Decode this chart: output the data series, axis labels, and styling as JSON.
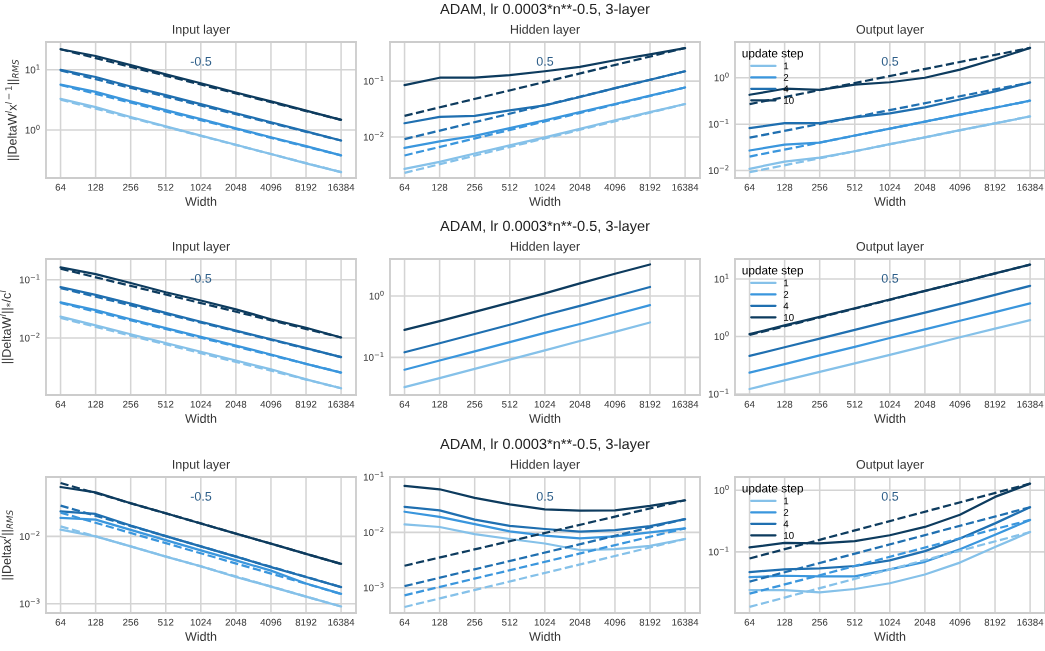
{
  "chart_data": [
    {
      "type": "line",
      "title": "Input layer",
      "xlabel": "Width",
      "ylabel": "||DeltaW$^{l}$x$^{l−1}$||$_{RMS}$",
      "log": "xy",
      "grid": true,
      "x": [
        64,
        128,
        256,
        512,
        1024,
        2048,
        4096,
        8192,
        16384
      ],
      "xlim": [
        48,
        22000
      ],
      "xticks": [
        64,
        128,
        256,
        512,
        1024,
        2048,
        4096,
        8192,
        16384
      ],
      "ylim": [
        0.16,
        29
      ],
      "yticks": [
        {
          "value": 1,
          "label": "10$^{0}$"
        },
        {
          "value": 10,
          "label": "10$^{1}$"
        }
      ],
      "annotations": [
        "-0.5"
      ],
      "series": [
        {
          "color": "#85c1e9",
          "values": [
            3.3,
            2.4,
            1.65,
            1.15,
            0.81,
            0.57,
            0.4,
            0.28,
            0.2
          ]
        },
        {
          "color": "#3a96dd",
          "values": [
            5.7,
            4.3,
            3.0,
            2.15,
            1.52,
            1.07,
            0.76,
            0.54,
            0.38
          ]
        },
        {
          "color": "#1f6fb0",
          "values": [
            10,
            7.6,
            5.3,
            3.8,
            2.7,
            1.9,
            1.35,
            0.95,
            0.67
          ]
        },
        {
          "color": "#0d3b5e",
          "values": [
            22,
            17,
            12,
            8.4,
            6,
            4.2,
            3,
            2.1,
            1.48
          ]
        },
        {
          "color": "#85c1e9",
          "line_style": "dashed",
          "x": [
            64,
            16384
          ],
          "values": [
            3.2,
            0.2
          ]
        },
        {
          "color": "#3a96dd",
          "line_style": "dashed",
          "x": [
            64,
            16384
          ],
          "values": [
            5.6,
            0.38
          ]
        },
        {
          "color": "#1f6fb0",
          "line_style": "dashed",
          "x": [
            64,
            16384
          ],
          "values": [
            9.8,
            0.67
          ]
        },
        {
          "color": "#0d3b5e",
          "line_style": "dashed",
          "x": [
            64,
            16384
          ],
          "values": [
            22,
            1.48
          ]
        }
      ]
    },
    {
      "type": "line",
      "title": "Hidden layer",
      "subtitle": "ADAM, lr 0.0003*n**-0.5, 3-layer",
      "xlabel": "Width",
      "log": "xy",
      "grid": true,
      "x": [
        64,
        128,
        256,
        512,
        1024,
        2048,
        4096,
        8192,
        16384
      ],
      "xlim": [
        48,
        22000
      ],
      "xticks": [
        64,
        128,
        256,
        512,
        1024,
        2048,
        4096,
        8192,
        16384
      ],
      "ylim": [
        0.00186,
        0.5
      ],
      "yticks": [
        {
          "value": 0.01,
          "label": "10$^{−2}$"
        },
        {
          "value": 0.1,
          "label": "10$^{−1}$"
        }
      ],
      "annotations": [
        "0.5"
      ],
      "series": [
        {
          "color": "#85c1e9",
          "values": [
            0.0027,
            0.0036,
            0.0051,
            0.0071,
            0.0099,
            0.014,
            0.02,
            0.028,
            0.039
          ]
        },
        {
          "color": "#3a96dd",
          "values": [
            0.0064,
            0.0084,
            0.0105,
            0.0145,
            0.02,
            0.028,
            0.039,
            0.055,
            0.077
          ]
        },
        {
          "color": "#1f6fb0",
          "values": [
            0.0177,
            0.023,
            0.024,
            0.03,
            0.037,
            0.052,
            0.075,
            0.106,
            0.15
          ]
        },
        {
          "color": "#0d3b5e",
          "values": [
            0.085,
            0.115,
            0.115,
            0.128,
            0.15,
            0.18,
            0.236,
            0.3,
            0.39
          ]
        },
        {
          "color": "#85c1e9",
          "line_style": "dashed",
          "x": [
            64,
            16384
          ],
          "values": [
            0.0023,
            0.039
          ]
        },
        {
          "color": "#3a96dd",
          "line_style": "dashed",
          "x": [
            64,
            16384
          ],
          "values": [
            0.0047,
            0.077
          ]
        },
        {
          "color": "#1f6fb0",
          "line_style": "dashed",
          "x": [
            64,
            16384
          ],
          "values": [
            0.0092,
            0.15
          ]
        },
        {
          "color": "#0d3b5e",
          "line_style": "dashed",
          "x": [
            64,
            16384
          ],
          "values": [
            0.024,
            0.39
          ]
        }
      ]
    },
    {
      "type": "line",
      "title": "Output layer",
      "xlabel": "Width",
      "log": "xy",
      "grid": true,
      "legend": "top left",
      "legend_title": "update step",
      "x": [
        64,
        128,
        256,
        512,
        1024,
        2048,
        4096,
        8192,
        16384
      ],
      "xlim": [
        48,
        22000
      ],
      "xticks": [
        64,
        128,
        256,
        512,
        1024,
        2048,
        4096,
        8192,
        16384
      ],
      "ylim": [
        0.0069,
        5.9
      ],
      "yticks": [
        {
          "value": 0.01,
          "label": "10$^{−2}$"
        },
        {
          "value": 0.1,
          "label": "10$^{−1}$"
        },
        {
          "value": 1,
          "label": "10$^{0}$"
        }
      ],
      "annotations": [
        "0.5"
      ],
      "series": [
        {
          "name": "1",
          "color": "#85c1e9",
          "values": [
            0.0109,
            0.0156,
            0.019,
            0.026,
            0.037,
            0.052,
            0.074,
            0.104,
            0.147
          ]
        },
        {
          "name": "2",
          "color": "#3a96dd",
          "values": [
            0.027,
            0.036,
            0.04,
            0.057,
            0.08,
            0.113,
            0.16,
            0.226,
            0.32
          ]
        },
        {
          "name": "4",
          "color": "#1f6fb0",
          "values": [
            0.082,
            0.105,
            0.105,
            0.14,
            0.17,
            0.23,
            0.34,
            0.51,
            0.79
          ]
        },
        {
          "name": "10",
          "color": "#0d3b5e",
          "values": [
            0.43,
            0.58,
            0.55,
            0.71,
            0.8,
            1.0,
            1.5,
            2.5,
            4.4
          ]
        },
        {
          "color": "#85c1e9",
          "line_style": "dashed",
          "x": [
            64,
            16384
          ],
          "values": [
            0.0092,
            0.147
          ]
        },
        {
          "color": "#3a96dd",
          "line_style": "dashed",
          "x": [
            64,
            16384
          ],
          "values": [
            0.02,
            0.32
          ]
        },
        {
          "color": "#1f6fb0",
          "line_style": "dashed",
          "x": [
            64,
            16384
          ],
          "values": [
            0.051,
            0.79
          ]
        },
        {
          "color": "#0d3b5e",
          "line_style": "dashed",
          "x": [
            64,
            16384
          ],
          "values": [
            0.27,
            4.4
          ]
        }
      ]
    },
    {
      "type": "line",
      "title": "Input layer",
      "xlabel": "Width",
      "ylabel": "||DeltaW$^{l}$||$_{*}$/c$^{l}$",
      "log": "xy",
      "grid": true,
      "x": [
        64,
        128,
        256,
        512,
        1024,
        2048,
        4096,
        8192,
        16384
      ],
      "xlim": [
        48,
        22000
      ],
      "xticks": [
        64,
        128,
        256,
        512,
        1024,
        2048,
        4096,
        8192,
        16384
      ],
      "ylim": [
        0.00105,
        0.227
      ],
      "yticks": [
        {
          "value": 0.01,
          "label": "10$^{−2}$"
        },
        {
          "value": 0.1,
          "label": "10$^{−1}$"
        }
      ],
      "annotations": [
        "-0.5"
      ],
      "series": [
        {
          "color": "#85c1e9",
          "values": [
            0.0232,
            0.0165,
            0.0116,
            0.0082,
            0.0058,
            0.0041,
            0.0029,
            0.00195,
            0.00137
          ]
        },
        {
          "color": "#3a96dd",
          "values": [
            0.041,
            0.03,
            0.021,
            0.0148,
            0.0105,
            0.0074,
            0.0052,
            0.0036,
            0.00255
          ]
        },
        {
          "color": "#1f6fb0",
          "values": [
            0.075,
            0.055,
            0.039,
            0.027,
            0.019,
            0.0134,
            0.0095,
            0.0067,
            0.0047
          ]
        },
        {
          "color": "#0d3b5e",
          "values": [
            0.163,
            0.125,
            0.088,
            0.061,
            0.044,
            0.031,
            0.021,
            0.015,
            0.0102
          ]
        },
        {
          "color": "#85c1e9",
          "line_style": "dashed",
          "x": [
            64,
            16384
          ],
          "values": [
            0.022,
            0.00137
          ]
        },
        {
          "color": "#3a96dd",
          "line_style": "dashed",
          "x": [
            64,
            16384
          ],
          "values": [
            0.04,
            0.00255
          ]
        },
        {
          "color": "#1f6fb0",
          "line_style": "dashed",
          "x": [
            64,
            16384
          ],
          "values": [
            0.072,
            0.0047
          ]
        },
        {
          "color": "#0d3b5e",
          "line_style": "dashed",
          "x": [
            64,
            16384
          ],
          "values": [
            0.155,
            0.0102
          ]
        }
      ]
    },
    {
      "type": "line",
      "title": "Hidden layer",
      "subtitle": "ADAM, lr 0.0003*n**-0.5, 3-layer",
      "xlabel": "Width",
      "log": "xy",
      "grid": true,
      "xlim": [
        48,
        22000
      ],
      "xticks": [
        64,
        128,
        256,
        512,
        1024,
        2048,
        4096,
        8192,
        16384
      ],
      "ylim": [
        0.0244,
        4.0
      ],
      "yticks": [
        {
          "value": 0.1,
          "label": "10$^{−1}$"
        },
        {
          "value": 1,
          "label": "10$^{0}$"
        }
      ],
      "series": [
        {
          "color": "#85c1e9",
          "x": [
            64,
            128,
            256,
            512,
            1024,
            2048,
            4096,
            8192
          ],
          "values": [
            0.0327,
            0.046,
            0.065,
            0.092,
            0.13,
            0.185,
            0.26,
            0.37
          ]
        },
        {
          "color": "#3a96dd",
          "x": [
            64,
            128,
            256,
            512,
            1024,
            2048,
            4096,
            8192
          ],
          "values": [
            0.063,
            0.089,
            0.125,
            0.177,
            0.25,
            0.35,
            0.5,
            0.71
          ]
        },
        {
          "color": "#1f6fb0",
          "x": [
            64,
            128,
            256,
            512,
            1024,
            2048,
            4096,
            8192
          ],
          "values": [
            0.121,
            0.17,
            0.24,
            0.34,
            0.49,
            0.69,
            0.98,
            1.4
          ]
        },
        {
          "color": "#0d3b5e",
          "x": [
            64,
            128,
            256,
            512,
            1024,
            2048,
            4096,
            8192
          ],
          "values": [
            0.28,
            0.39,
            0.55,
            0.78,
            1.1,
            1.6,
            2.3,
            3.26
          ]
        }
      ]
    },
    {
      "type": "line",
      "title": "Output layer",
      "xlabel": "Width",
      "log": "xy",
      "grid": true,
      "legend": "top left",
      "legend_title": "update step",
      "x": [
        64,
        128,
        256,
        512,
        1024,
        2048,
        4096,
        8192,
        16384
      ],
      "xlim": [
        48,
        22000
      ],
      "xticks": [
        64,
        128,
        256,
        512,
        1024,
        2048,
        4096,
        8192,
        16384
      ],
      "ylim": [
        0.096,
        22.3
      ],
      "yticks": [
        {
          "value": 0.1,
          "label": "10$^{−1}$"
        },
        {
          "value": 1,
          "label": "10$^{0}$"
        },
        {
          "value": 10,
          "label": "10$^{1}$"
        }
      ],
      "annotations": [
        "0.5"
      ],
      "series": [
        {
          "name": "1",
          "color": "#85c1e9",
          "values": [
            0.122,
            0.172,
            0.243,
            0.34,
            0.48,
            0.68,
            0.97,
            1.37,
            1.93
          ]
        },
        {
          "name": "2",
          "color": "#3a96dd",
          "values": [
            0.235,
            0.33,
            0.47,
            0.66,
            0.94,
            1.33,
            1.88,
            2.66,
            3.76
          ]
        },
        {
          "name": "4",
          "color": "#1f6fb0",
          "values": [
            0.46,
            0.65,
            0.92,
            1.3,
            1.85,
            2.6,
            3.7,
            5.3,
            7.6
          ]
        },
        {
          "name": "10",
          "color": "#0d3b5e",
          "values": [
            1.1,
            1.56,
            2.2,
            3.1,
            4.4,
            6.2,
            8.8,
            12.5,
            17.8
          ]
        },
        {
          "color": "#0d3b5e",
          "line_style": "dashed",
          "x": [
            64,
            16384
          ],
          "values": [
            1.06,
            17.8
          ]
        }
      ]
    },
    {
      "type": "line",
      "title": "Input layer",
      "xlabel": "Width",
      "ylabel": "||Deltax$^{l}$||$_{RMS}$",
      "log": "xy",
      "grid": true,
      "x": [
        64,
        128,
        256,
        512,
        1024,
        2048,
        4096,
        8192,
        16384
      ],
      "xlim": [
        48,
        22000
      ],
      "xticks": [
        64,
        128,
        256,
        512,
        1024,
        2048,
        4096,
        8192,
        16384
      ],
      "ylim": [
        0.00073,
        0.076
      ],
      "yticks": [
        {
          "value": 0.001,
          "label": "10$^{−3}$"
        },
        {
          "value": 0.01,
          "label": "10$^{−2}$"
        }
      ],
      "annotations": [
        "-0.5"
      ],
      "series": [
        {
          "color": "#85c1e9",
          "values": [
            0.0126,
            0.01,
            0.0071,
            0.005,
            0.0036,
            0.0025,
            0.0018,
            0.00128,
            0.00091
          ]
        },
        {
          "color": "#3a96dd",
          "values": [
            0.0188,
            0.0177,
            0.0125,
            0.0088,
            0.0062,
            0.0044,
            0.0031,
            0.002,
            0.0014
          ]
        },
        {
          "color": "#1f6fb0",
          "values": [
            0.0235,
            0.0215,
            0.0145,
            0.0101,
            0.0071,
            0.005,
            0.0035,
            0.0025,
            0.00177
          ]
        },
        {
          "color": "#0d3b5e",
          "values": [
            0.054,
            0.045,
            0.031,
            0.022,
            0.0155,
            0.011,
            0.0078,
            0.0055,
            0.0039
          ]
        },
        {
          "color": "#85c1e9",
          "line_style": "dashed",
          "x": [
            64,
            16384
          ],
          "values": [
            0.0141,
            0.00091
          ]
        },
        {
          "color": "#3a96dd",
          "line_style": "dashed",
          "x": [
            64,
            16384
          ],
          "values": [
            0.0225,
            0.0014
          ]
        },
        {
          "color": "#1f6fb0",
          "line_style": "dashed",
          "x": [
            64,
            16384
          ],
          "values": [
            0.0286,
            0.00177
          ]
        },
        {
          "color": "#0d3b5e",
          "line_style": "dashed",
          "x": [
            64,
            16384
          ],
          "values": [
            0.062,
            0.0039
          ]
        }
      ]
    },
    {
      "type": "line",
      "title": "Hidden layer",
      "subtitle": "ADAM, lr 0.0003*n**-0.5, 3-layer",
      "xlabel": "Width",
      "log": "xy",
      "grid": true,
      "x": [
        64,
        128,
        256,
        512,
        1024,
        2048,
        4096,
        8192,
        16384
      ],
      "xlim": [
        48,
        22000
      ],
      "xticks": [
        64,
        128,
        256,
        512,
        1024,
        2048,
        4096,
        8192,
        16384
      ],
      "ylim": [
        0.00035,
        0.1
      ],
      "yticks": [
        {
          "value": 0.001,
          "label": "10$^{−3}$"
        },
        {
          "value": 0.01,
          "label": "10$^{−2}$"
        },
        {
          "value": 0.1,
          "label": "10$^{−1}$"
        }
      ],
      "annotations": [
        "0.5"
      ],
      "series": [
        {
          "color": "#85c1e9",
          "values": [
            0.0139,
            0.0125,
            0.0093,
            0.0076,
            0.0063,
            0.0048,
            0.005,
            0.0057,
            0.0076
          ]
        },
        {
          "color": "#3a96dd",
          "values": [
            0.0236,
            0.019,
            0.0141,
            0.0104,
            0.0087,
            0.0078,
            0.0085,
            0.01,
            0.0118
          ]
        },
        {
          "color": "#1f6fb0",
          "values": [
            0.029,
            0.025,
            0.017,
            0.0131,
            0.0115,
            0.0103,
            0.011,
            0.013,
            0.0174
          ]
        },
        {
          "color": "#0d3b5e",
          "values": [
            0.069,
            0.06,
            0.042,
            0.032,
            0.026,
            0.0246,
            0.025,
            0.03,
            0.038
          ]
        },
        {
          "color": "#85c1e9",
          "line_style": "dashed",
          "x": [
            64,
            16384
          ],
          "values": [
            0.00045,
            0.0076
          ]
        },
        {
          "color": "#3a96dd",
          "line_style": "dashed",
          "x": [
            64,
            16384
          ],
          "values": [
            0.00073,
            0.0118
          ]
        },
        {
          "color": "#1f6fb0",
          "line_style": "dashed",
          "x": [
            64,
            16384
          ],
          "values": [
            0.00107,
            0.0174
          ]
        },
        {
          "color": "#0d3b5e",
          "line_style": "dashed",
          "x": [
            64,
            16384
          ],
          "values": [
            0.0025,
            0.038
          ]
        }
      ]
    },
    {
      "type": "line",
      "title": "Output layer",
      "xlabel": "Width",
      "log": "xy",
      "grid": true,
      "legend": "top left",
      "legend_title": "update step",
      "x": [
        64,
        128,
        256,
        512,
        1024,
        2048,
        4096,
        8192,
        16384
      ],
      "xlim": [
        48,
        22000
      ],
      "xticks": [
        64,
        128,
        256,
        512,
        1024,
        2048,
        4096,
        8192,
        16384
      ],
      "ylim": [
        0.0102,
        1.64
      ],
      "yticks": [
        {
          "value": 0.1,
          "label": "10$^{−1}$"
        },
        {
          "value": 1,
          "label": "10$^{0}$"
        }
      ],
      "annotations": [
        "0.5"
      ],
      "series": [
        {
          "name": "1",
          "color": "#85c1e9",
          "values": [
            0.024,
            0.024,
            0.022,
            0.025,
            0.031,
            0.043,
            0.067,
            0.12,
            0.21
          ]
        },
        {
          "name": "2",
          "color": "#3a96dd",
          "values": [
            0.039,
            0.041,
            0.04,
            0.04,
            0.052,
            0.069,
            0.11,
            0.19,
            0.33
          ]
        },
        {
          "name": "4",
          "color": "#1f6fb0",
          "values": [
            0.047,
            0.052,
            0.054,
            0.059,
            0.073,
            0.103,
            0.165,
            0.29,
            0.53
          ]
        },
        {
          "name": "10",
          "color": "#0d3b5e",
          "values": [
            0.118,
            0.14,
            0.137,
            0.149,
            0.186,
            0.254,
            0.4,
            0.78,
            1.28
          ]
        },
        {
          "color": "#85c1e9",
          "line_style": "dashed",
          "x": [
            64,
            16384
          ],
          "values": [
            0.0128,
            0.21
          ]
        },
        {
          "color": "#3a96dd",
          "line_style": "dashed",
          "x": [
            64,
            16384
          ],
          "values": [
            0.021,
            0.33
          ]
        },
        {
          "color": "#1f6fb0",
          "line_style": "dashed",
          "x": [
            64,
            16384
          ],
          "values": [
            0.033,
            0.53
          ]
        },
        {
          "color": "#0d3b5e",
          "line_style": "dashed",
          "x": [
            64,
            16384
          ],
          "values": [
            0.078,
            1.28
          ]
        }
      ]
    }
  ]
}
